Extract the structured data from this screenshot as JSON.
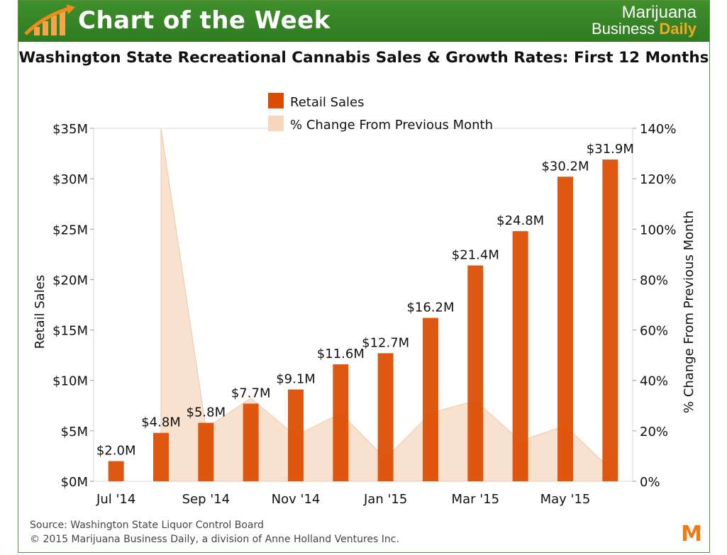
{
  "header": {
    "banner_title": "Chart of the Week",
    "logo_line1": "Marijuana",
    "logo_line2_a": "Business ",
    "logo_line2_b": "Daily"
  },
  "footer": {
    "source": "Source: Washington State Liquor Control Board",
    "copyright": "© 2015 Marijuana Business Daily, a division of Anne Holland Ventures Inc.",
    "mark": "M"
  },
  "colors": {
    "bar": "#dd4b00",
    "area": "#f6d7bd",
    "banner": "#3a8a29",
    "accent": "#f5a623"
  },
  "chart_data": {
    "type": "bar",
    "title": "Washington State Recreational Cannabis Sales & Growth Rates: First 12 Months",
    "ylabel": "Retail Sales",
    "y2label": "% Change From Previous Month",
    "ylim": [
      0,
      35
    ],
    "y2lim": [
      0,
      140
    ],
    "y_ticks": [
      "$0M",
      "$5M",
      "$10M",
      "$15M",
      "$20M",
      "$25M",
      "$30M",
      "$35M"
    ],
    "y2_ticks": [
      "0%",
      "20%",
      "40%",
      "60%",
      "80%",
      "100%",
      "120%",
      "140%"
    ],
    "x_ticks": [
      "Jul '14",
      "Sep '14",
      "Nov '14",
      "Jan '15",
      "Mar '15",
      "May '15"
    ],
    "x_tick_index": [
      0,
      2,
      4,
      6,
      8,
      10
    ],
    "categories": [
      "Jul 2014",
      "Aug 2014",
      "Sep 2014",
      "Oct 2014",
      "Nov 2014",
      "Dec 2014",
      "Jan 2015",
      "Feb 2015",
      "Mar 2015",
      "Apr 2015",
      "May 2015",
      "Jun 2015"
    ],
    "legend": [
      "Retail Sales",
      "% Change From Previous Month"
    ],
    "legend_position": "top",
    "series": [
      {
        "name": "Retail Sales",
        "type": "bar",
        "axis": "left",
        "values": [
          2.0,
          4.8,
          5.8,
          7.7,
          9.1,
          11.6,
          12.7,
          16.2,
          21.4,
          24.8,
          30.2,
          31.9
        ],
        "labels": [
          "$2.0M",
          "$4.8M",
          "$5.8M",
          "$7.7M",
          "$9.1M",
          "$11.6M",
          "$12.7M",
          "$16.2M",
          "$21.4M",
          "$24.8M",
          "$30.2M",
          "$31.9M"
        ]
      },
      {
        "name": "% Change From Previous Month",
        "type": "area",
        "axis": "right",
        "values": [
          null,
          140,
          21,
          33,
          18,
          27,
          9,
          27,
          32,
          16,
          22,
          5
        ]
      }
    ]
  }
}
